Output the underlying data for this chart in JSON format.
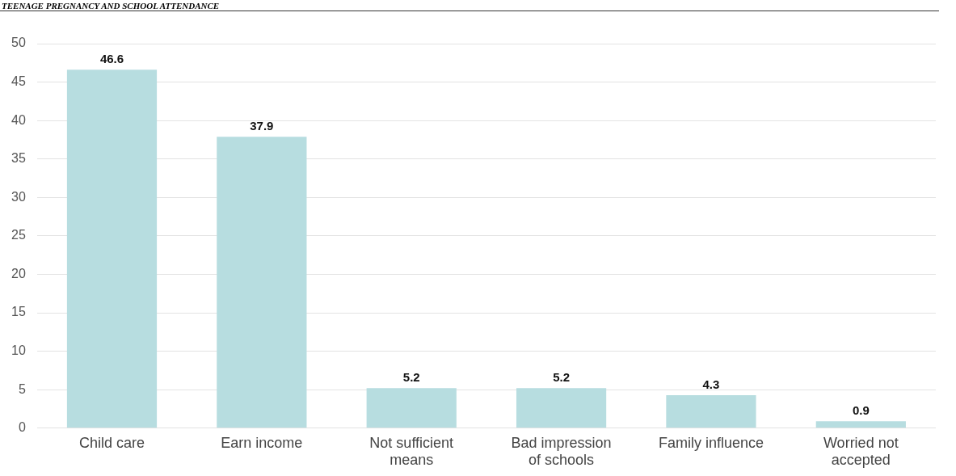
{
  "chart_data": {
    "type": "bar",
    "title": "TEENAGE PREGNANCY AND SCHOOL ATTENDANCE",
    "categories": [
      "Child care",
      "Earn income",
      "Not sufficient means",
      "Bad impression of schools",
      "Family influence",
      "Worried not accepted"
    ],
    "values": [
      46.6,
      37.9,
      5.2,
      5.2,
      4.3,
      0.9
    ],
    "color": "#b7dde0",
    "ylim": [
      0,
      50
    ],
    "yticks": [
      0,
      5,
      10,
      15,
      20,
      25,
      30,
      35,
      40,
      45,
      50
    ],
    "grid": "y",
    "data_labels": true,
    "legend": false
  }
}
